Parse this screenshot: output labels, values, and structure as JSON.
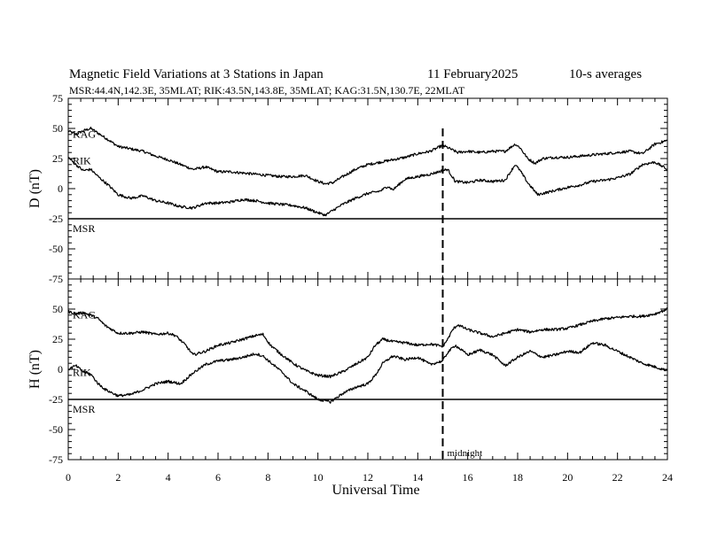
{
  "page": {
    "title": "Magnetic Field Variations at 3 Stations in Japan",
    "date": "11 February2025",
    "averaging": "10-s averages",
    "stations_line": "MSR:44.4N,142.3E, 35MLAT;  RIK:43.5N,143.8E, 35MLAT;  KAG:31.5N,130.7E, 22MLAT"
  },
  "chart_data": {
    "type": "line",
    "xlabel": "Universal Time",
    "xlim": [
      0,
      24
    ],
    "x_ticks": [
      "0",
      "2",
      "4",
      "6",
      "8",
      "10",
      "12",
      "14",
      "16",
      "18",
      "20",
      "22",
      "24"
    ],
    "vertical_marker": {
      "x": 15,
      "label": "midnight"
    },
    "colors": {
      "line": "#000000",
      "background": "#ffffff"
    },
    "panels": [
      {
        "ylabel": "D (nT)",
        "ylim": [
          -75,
          75
        ],
        "y_ticks": [
          "75",
          "50",
          "25",
          "0",
          "-25",
          "-50",
          "-75"
        ],
        "series": [
          {
            "name": "KAG",
            "x": [
              0,
              0.3,
              0.6,
              0.9,
              1.2,
              1.5,
              2,
              2.5,
              3,
              3.5,
              4,
              4.5,
              5,
              5.5,
              6,
              6.5,
              7,
              7.5,
              8,
              8.5,
              9,
              9.5,
              10,
              10.3,
              10.6,
              11,
              11.5,
              12,
              12.5,
              13,
              13.5,
              14,
              14.5,
              14.8,
              15,
              15.3,
              15.6,
              16,
              16.5,
              17,
              17.5,
              17.9,
              18.1,
              18.4,
              18.7,
              19,
              19.5,
              20,
              20.5,
              21,
              21.5,
              22,
              22.5,
              23,
              23.5,
              24
            ],
            "values": [
              48,
              45,
              48,
              50,
              46,
              42,
              35,
              33,
              31,
              27,
              24,
              20,
              16,
              18,
              14,
              14,
              13,
              12,
              11,
              10,
              10,
              11,
              6,
              4,
              5,
              10,
              16,
              20,
              22,
              24,
              26,
              29,
              31,
              34,
              36,
              33,
              30,
              31,
              30,
              31,
              31,
              37,
              34,
              25,
              21,
              25,
              26,
              26,
              27,
              28,
              29,
              30,
              31,
              29,
              37,
              40
            ]
          },
          {
            "name": "RIK",
            "x": [
              0,
              0.3,
              0.6,
              0.9,
              1.2,
              1.6,
              2,
              2.5,
              3,
              3.5,
              4,
              4.5,
              5,
              5.5,
              6,
              6.5,
              7,
              7.5,
              8,
              8.5,
              9,
              9.5,
              10,
              10.3,
              10.6,
              11,
              11.5,
              12,
              12.5,
              12.8,
              13,
              13.5,
              14,
              14.5,
              15,
              15.2,
              15.5,
              16,
              16.5,
              17,
              17.5,
              17.9,
              18.1,
              18.4,
              18.8,
              19.2,
              19.6,
              20,
              20.5,
              21,
              21.5,
              22,
              22.5,
              23,
              23.5,
              24
            ],
            "values": [
              26,
              20,
              15,
              16,
              10,
              3,
              -5,
              -8,
              -6,
              -10,
              -12,
              -15,
              -16,
              -12,
              -12,
              -11,
              -9,
              -10,
              -12,
              -13,
              -14,
              -16,
              -20,
              -22,
              -18,
              -13,
              -8,
              -4,
              -2,
              2,
              -1,
              8,
              10,
              12,
              15,
              16,
              6,
              5,
              7,
              6,
              7,
              20,
              15,
              5,
              -5,
              -3,
              -1,
              1,
              3,
              6,
              7,
              9,
              12,
              20,
              22,
              16
            ]
          },
          {
            "name": "MSR",
            "x": [
              0,
              24
            ],
            "values": [
              -25,
              -25
            ]
          }
        ]
      },
      {
        "ylabel": "H (nT)",
        "ylim": [
          -75,
          75
        ],
        "y_ticks": [
          "",
          "50",
          "25",
          "0",
          "-25",
          "-50",
          "-75"
        ],
        "series": [
          {
            "name": "KAG",
            "x": [
              0,
              0.3,
              0.6,
              0.9,
              1.2,
              1.5,
              2,
              2.5,
              3,
              3.5,
              4,
              4.3,
              4.7,
              5,
              5.5,
              6,
              6.5,
              7,
              7.5,
              7.8,
              8.1,
              8.5,
              9,
              9.5,
              10,
              10.5,
              11,
              11.5,
              12,
              12.3,
              12.6,
              13,
              13.5,
              14,
              14.5,
              15,
              15.2,
              15.4,
              15.6,
              16,
              16.5,
              17,
              17.5,
              18,
              18.5,
              19,
              19.5,
              20,
              20.5,
              21,
              21.5,
              22,
              22.5,
              23,
              23.5,
              24
            ],
            "values": [
              48,
              46,
              47,
              45,
              42,
              36,
              30,
              30,
              31,
              29,
              30,
              28,
              20,
              12,
              15,
              20,
              22,
              25,
              28,
              29,
              20,
              13,
              5,
              -1,
              -5,
              -6,
              -2,
              4,
              10,
              20,
              25,
              23,
              22,
              20,
              21,
              19,
              25,
              33,
              37,
              33,
              30,
              27,
              30,
              33,
              31,
              33,
              33,
              34,
              37,
              40,
              42,
              43,
              44,
              44,
              46,
              50
            ]
          },
          {
            "name": "RIK",
            "x": [
              0,
              0.3,
              0.6,
              0.9,
              1.2,
              1.5,
              1.8,
              2,
              2.5,
              3,
              3.5,
              4,
              4.5,
              5,
              5.5,
              6,
              6.5,
              7,
              7.5,
              7.8,
              8.2,
              8.6,
              9,
              9.5,
              10,
              10.5,
              11,
              11.5,
              12,
              12.3,
              12.6,
              13,
              13.5,
              14,
              14.5,
              15,
              15.2,
              15.5,
              16,
              16.5,
              17,
              17.5,
              18,
              18.5,
              19,
              19.5,
              20,
              20.5,
              21,
              21.5,
              22,
              22.5,
              23,
              23.5,
              24
            ],
            "values": [
              0,
              3,
              -2,
              -4,
              -12,
              -17,
              -20,
              -22,
              -21,
              -17,
              -12,
              -10,
              -12,
              -3,
              4,
              7,
              8,
              10,
              13,
              11,
              4,
              -3,
              -12,
              -18,
              -25,
              -27,
              -20,
              -15,
              -12,
              -5,
              5,
              11,
              8,
              10,
              4,
              7,
              14,
              20,
              12,
              16,
              12,
              3,
              10,
              15,
              10,
              12,
              15,
              14,
              22,
              20,
              15,
              10,
              5,
              2,
              -1
            ]
          },
          {
            "name": "MSR",
            "x": [
              0,
              24
            ],
            "values": [
              -25,
              -25
            ]
          }
        ]
      }
    ]
  }
}
